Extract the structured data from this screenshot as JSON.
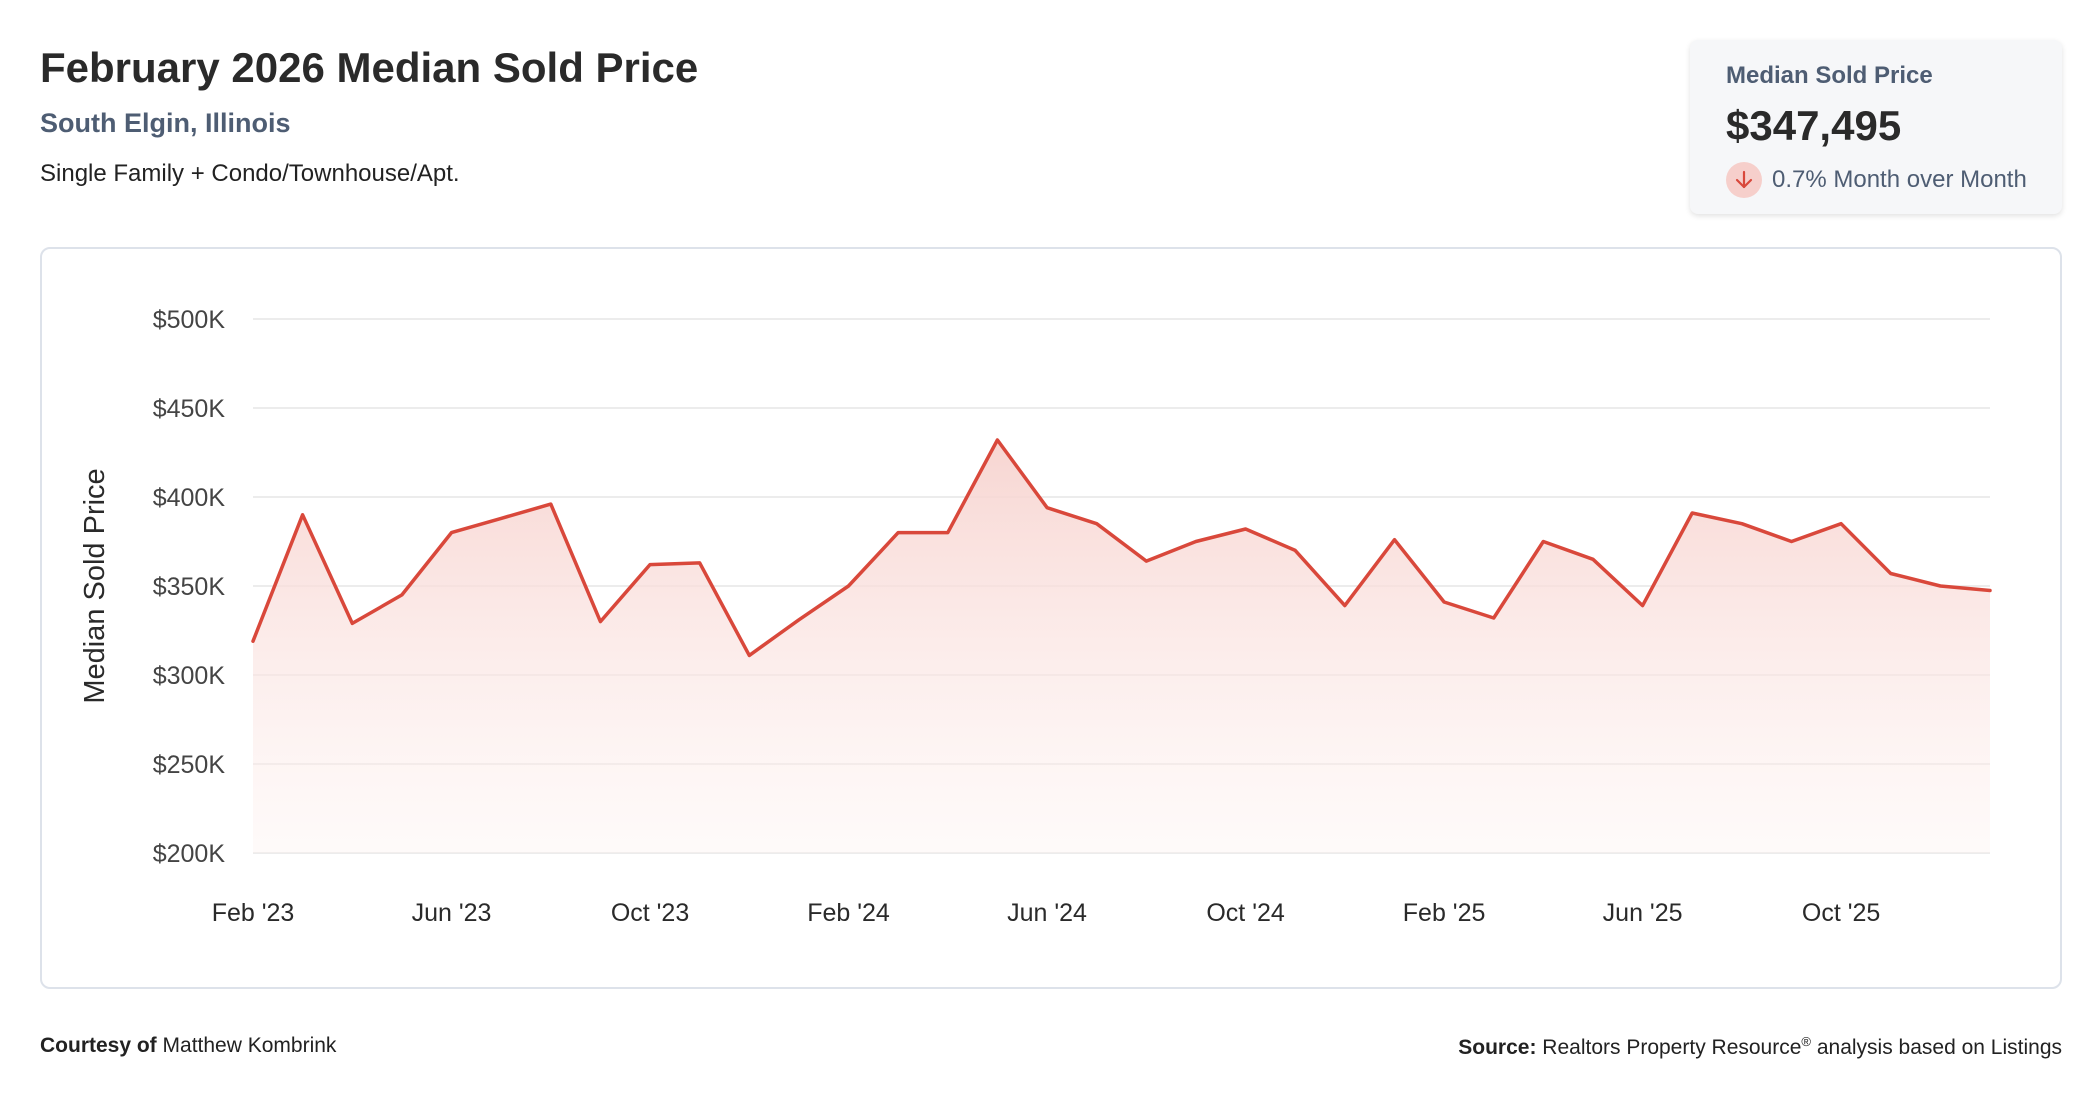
{
  "header": {
    "title": "February 2026 Median Sold Price",
    "location": "South Elgin, Illinois",
    "property_types": "Single Family + Condo/Townhouse/Apt."
  },
  "stat_card": {
    "label": "Median Sold Price",
    "value": "$347,495",
    "change": "0.7% Month over Month",
    "change_direction": "down",
    "change_icon": "arrow-down-icon"
  },
  "footer": {
    "courtesy_label": "Courtesy of",
    "courtesy_name": "Matthew Kombrink",
    "source_label": "Source:",
    "source_name": "Realtors Property Resource",
    "source_mark": "®",
    "source_rest": "analysis based on Listings"
  },
  "colors": {
    "line": "#d9483b",
    "fill_top": "#f7d3cf",
    "grid": "#e6e6e6",
    "axis_text": "#444444"
  },
  "chart_data": {
    "type": "area",
    "title": "",
    "xlabel": "",
    "ylabel": "Median Sold Price",
    "ylim": [
      200000,
      500000
    ],
    "yticks": [
      200000,
      250000,
      300000,
      350000,
      400000,
      450000,
      500000
    ],
    "ytick_labels": [
      "$200K",
      "$250K",
      "$300K",
      "$350K",
      "$400K",
      "$450K",
      "$500K"
    ],
    "xtick_labels": [
      "Feb '23",
      "Jun '23",
      "Oct '23",
      "Feb '24",
      "Jun '24",
      "Oct '24",
      "Feb '25",
      "Jun '25",
      "Oct '25"
    ],
    "xtick_index": [
      0,
      4,
      8,
      12,
      16,
      20,
      24,
      28,
      32
    ],
    "grid": true,
    "x": [
      "2023-02",
      "2023-03",
      "2023-04",
      "2023-05",
      "2023-06",
      "2023-07",
      "2023-08",
      "2023-09",
      "2023-10",
      "2023-11",
      "2023-12",
      "2024-01",
      "2024-02",
      "2024-03",
      "2024-04",
      "2024-05",
      "2024-06",
      "2024-07",
      "2024-08",
      "2024-09",
      "2024-10",
      "2024-11",
      "2024-12",
      "2025-01",
      "2025-02",
      "2025-03",
      "2025-04",
      "2025-05",
      "2025-06",
      "2025-07",
      "2025-08",
      "2025-09",
      "2025-10",
      "2025-11",
      "2025-12",
      "2026-01"
    ],
    "values": [
      319000,
      390000,
      329000,
      345000,
      380000,
      388000,
      396000,
      330000,
      362000,
      363000,
      311000,
      331000,
      350000,
      380000,
      380000,
      432000,
      394000,
      385000,
      364000,
      375000,
      382000,
      370000,
      339000,
      376000,
      341000,
      332000,
      375000,
      365000,
      339000,
      391000,
      385000,
      375000,
      385000,
      357000,
      350000,
      347495
    ]
  }
}
